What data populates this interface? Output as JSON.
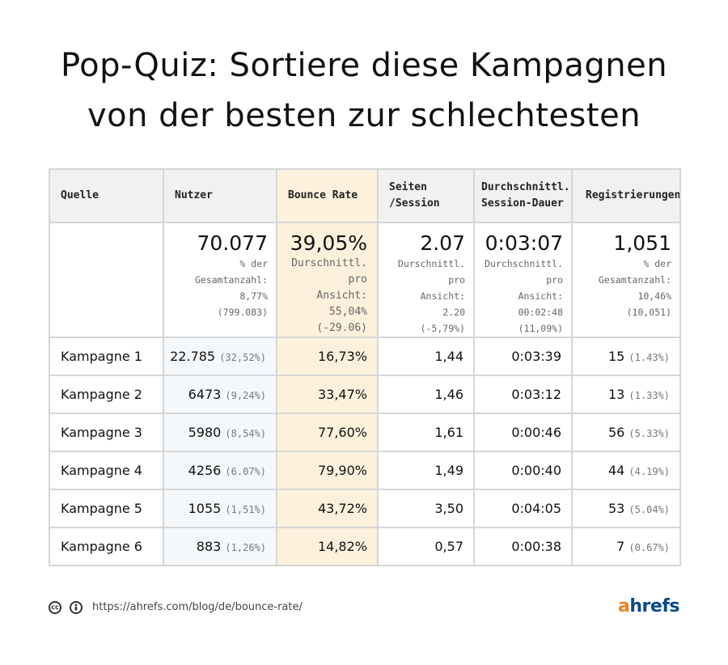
{
  "title": {
    "line1": "Pop-Quiz: Sortiere diese Kampagnen",
    "line2": "von der besten zur schlechtesten"
  },
  "headers": {
    "source": "Quelle",
    "users": "Nutzer",
    "bounce": "Bounce Rate",
    "pages": "Seiten\n/Session",
    "duration": "Durchschnittl.\nSession-Dauer",
    "registrations": "Registrierungen"
  },
  "totals": {
    "users": {
      "value": "70.077",
      "sub": "% der\nGesamtanzahl:\n8,77%\n(799.083)"
    },
    "bounce": {
      "value": "39,05%",
      "sub": "Durschnittl. pro\nAnsicht:\n55,04%\n(-29.06)"
    },
    "pages": {
      "value": "2.07",
      "sub": "Durschnittl. pro\nAnsicht:\n2.20\n(-5,79%)"
    },
    "duration": {
      "value": "0:03:07",
      "sub": "Durchschnittl. pro\nAnsicht:\n00:02:48\n(11,09%)"
    },
    "registrations": {
      "value": "1,051",
      "sub": "% der\nGesamtanzahl:\n10,46%\n(10,051)"
    }
  },
  "rows": [
    {
      "name": "Kampagne 1",
      "users": "22.785",
      "users_pct": "(32,52%)",
      "bounce": "16,73%",
      "pages": "1,44",
      "duration": "0:03:39",
      "reg": "15",
      "reg_pct": "(1.43%)"
    },
    {
      "name": "Kampagne 2",
      "users": "6473",
      "users_pct": "(9,24%)",
      "bounce": "33,47%",
      "pages": "1,46",
      "duration": "0:03:12",
      "reg": "13",
      "reg_pct": "(1.33%)"
    },
    {
      "name": "Kampagne 3",
      "users": "5980",
      "users_pct": "(8,54%)",
      "bounce": "77,60%",
      "pages": "1,61",
      "duration": "0:00:46",
      "reg": "56",
      "reg_pct": "(5.33%)"
    },
    {
      "name": "Kampagne 4",
      "users": "4256",
      "users_pct": "(6.07%)",
      "bounce": "79,90%",
      "pages": "1,49",
      "duration": "0:00:40",
      "reg": "44",
      "reg_pct": "(4.19%)"
    },
    {
      "name": "Kampagne 5",
      "users": "1055",
      "users_pct": "(1,51%)",
      "bounce": "43,72%",
      "pages": "3,50",
      "duration": "0:04:05",
      "reg": "53",
      "reg_pct": "(5.04%)"
    },
    {
      "name": "Kampagne 6",
      "users": "883",
      "users_pct": "(1,26%)",
      "bounce": "14,82%",
      "pages": "0,57",
      "duration": "0:00:38",
      "reg": "7",
      "reg_pct": "(0.67%)"
    }
  ],
  "footer": {
    "cc_icon": "creative-commons-icon",
    "by_icon": "attribution-icon",
    "url": "https://ahrefs.com/blog/de/bounce-rate/",
    "logo_a": "a",
    "logo_rest": "hrefs"
  },
  "colors": {
    "bounce_column": "#fdf1dd",
    "users_column": "#f5f8fb",
    "header_bg": "#f1f1f1",
    "logo_orange": "#f48021",
    "logo_blue": "#0b4a8b"
  }
}
